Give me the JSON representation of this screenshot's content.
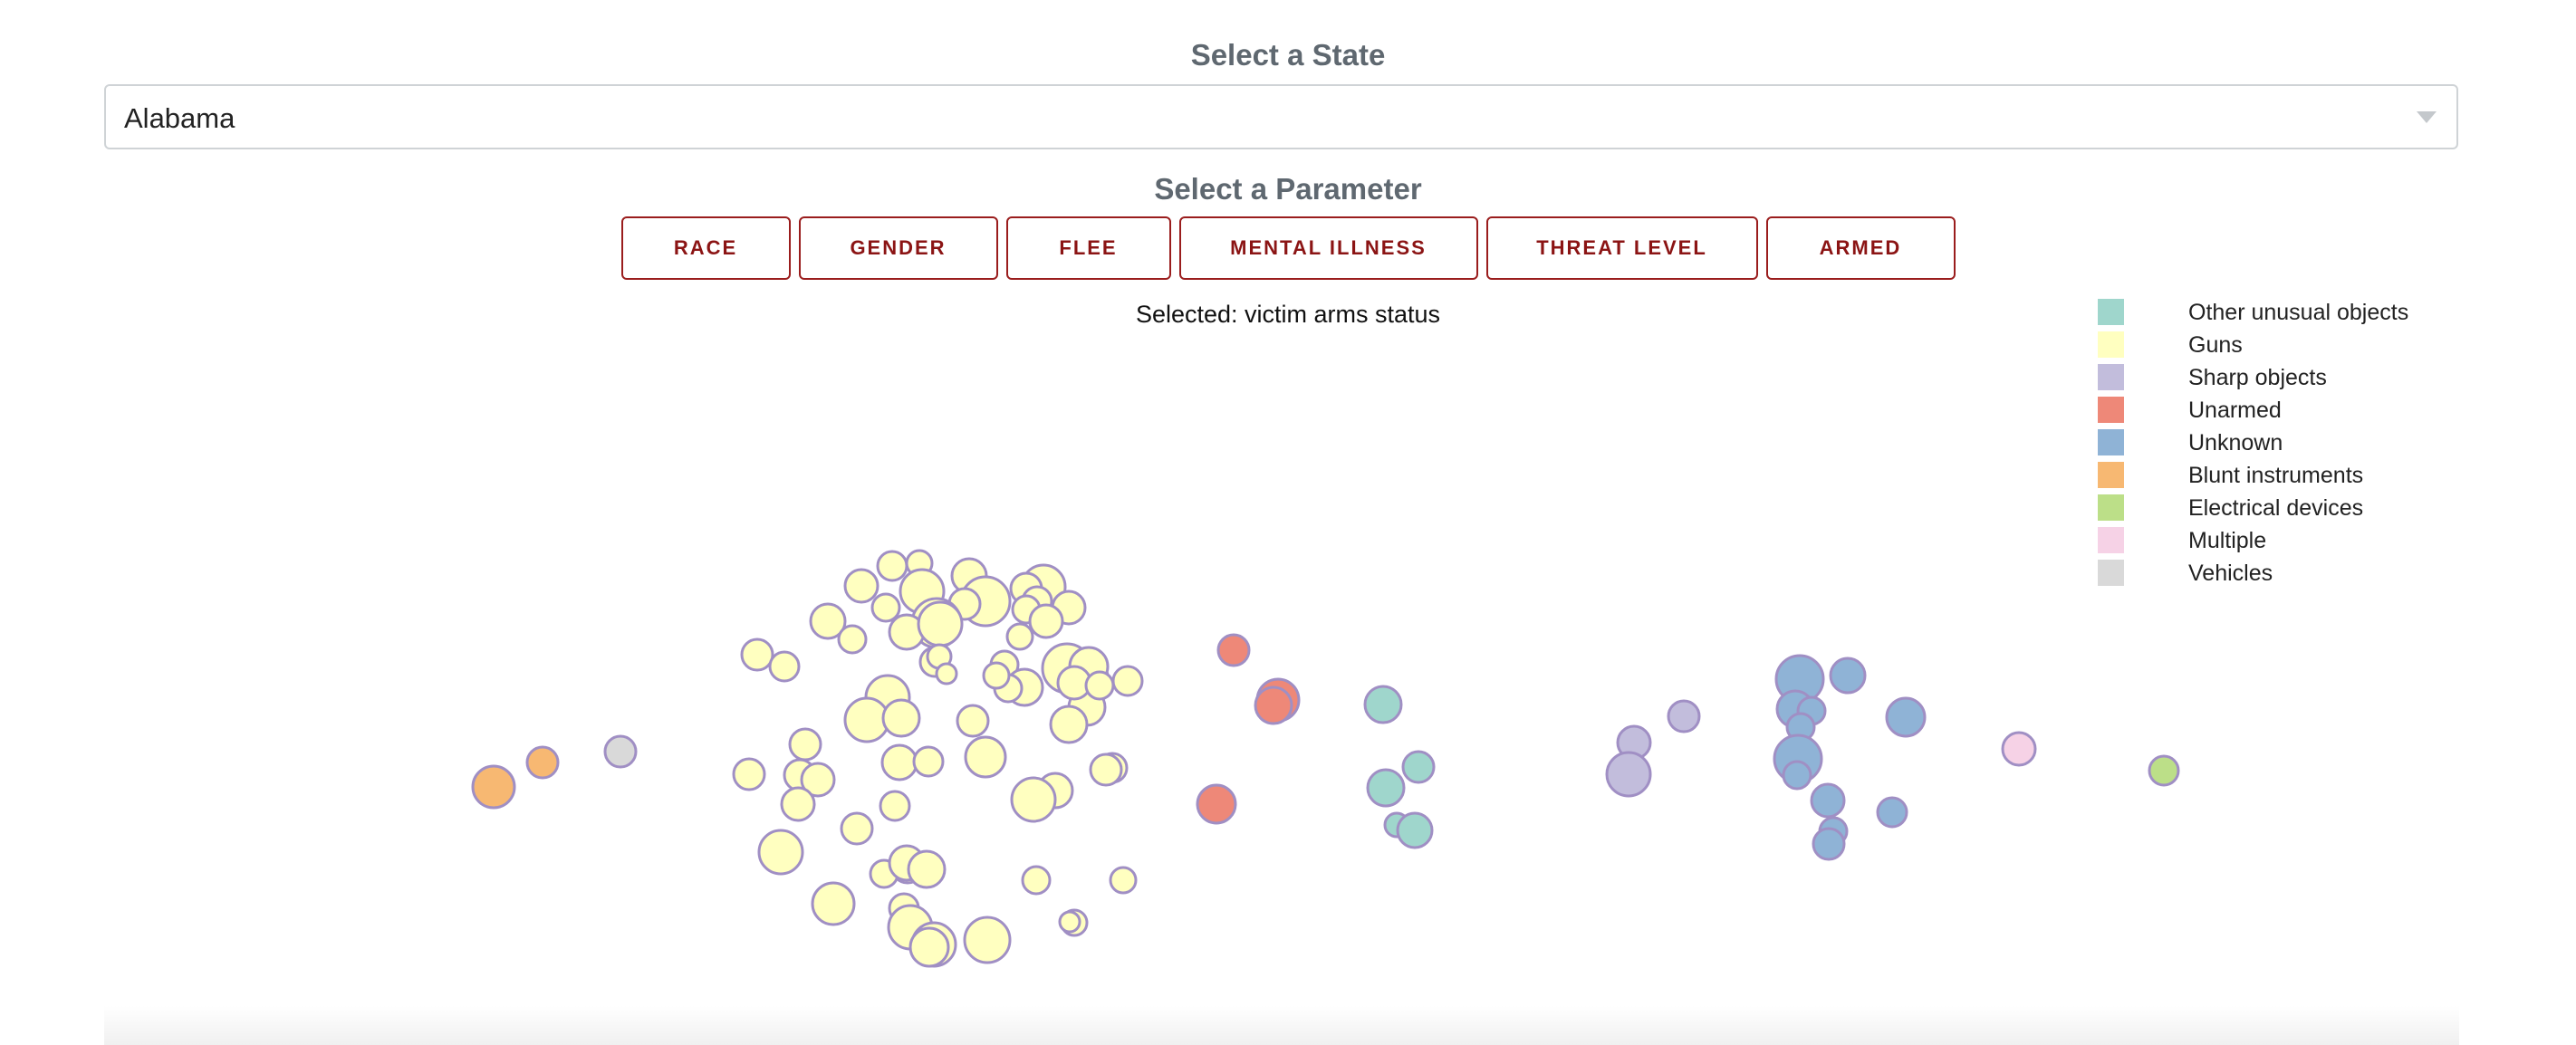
{
  "state_select": {
    "title": "Select a State",
    "value": "Alabama"
  },
  "parameter": {
    "title": "Select a Parameter",
    "buttons": [
      "RACE",
      "GENDER",
      "FLEE",
      "MENTAL ILLNESS",
      "THREAT LEVEL",
      "ARMED"
    ],
    "selected_text": "Selected: victim arms status"
  },
  "colors": {
    "button_text": "#8b1414",
    "bubble_stroke": "#a08fc4"
  },
  "legend": [
    {
      "label": "Other unusual objects",
      "color": "#9fd6cc"
    },
    {
      "label": "Guns",
      "color": "#ffffc0"
    },
    {
      "label": "Sharp objects",
      "color": "#c2bddc"
    },
    {
      "label": "Unarmed",
      "color": "#ee8878"
    },
    {
      "label": "Unknown",
      "color": "#8fb3d6"
    },
    {
      "label": "Blunt instruments",
      "color": "#f7b872"
    },
    {
      "label": "Electrical devices",
      "color": "#bcdf88"
    },
    {
      "label": "Multiple",
      "color": "#f6d2e6"
    },
    {
      "label": "Vehicles",
      "color": "#d9d9d9"
    }
  ]
}
